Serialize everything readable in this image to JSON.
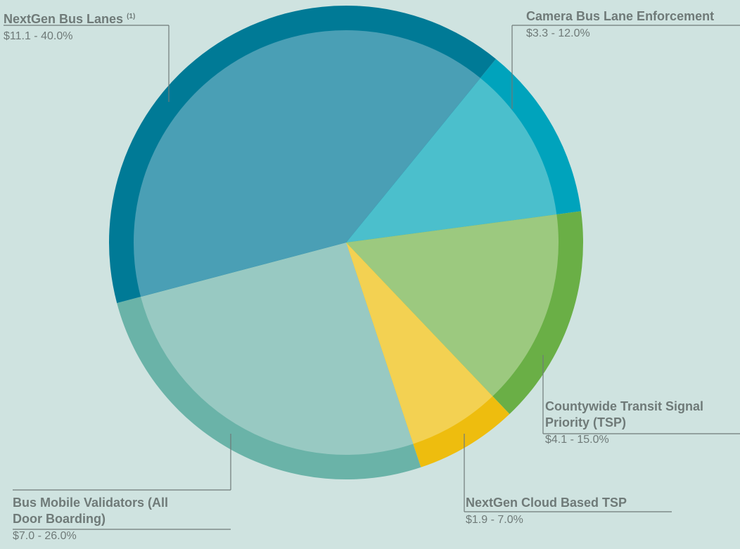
{
  "chart_data": {
    "type": "pie",
    "categories": [
      "Camera Bus Lane Enforcement",
      "Countywide Transit Signal Priority (TSP)",
      "NextGen Cloud Based TSP",
      "Bus Mobile Validators (All Door Boarding)",
      "NextGen Bus Lanes"
    ],
    "values": [
      12,
      15,
      7,
      26,
      40
    ],
    "value_labels": [
      "$3.3 - 12.0%",
      "$4.1 - 15.0%",
      "$1.9 - 7.0%",
      "$7.0 - 26.0%",
      "$11.1 - 40.0%"
    ],
    "colors": [
      "#00a3bc",
      "#6aaf46",
      "#eebd0e",
      "#6ab3a8",
      "#007a96"
    ],
    "inner_colors": [
      "#4bbfcc",
      "#9cc97f",
      "#f3d152",
      "#98c9c2",
      "#4a9fb5"
    ],
    "footnote_marker": "(1)"
  }
}
